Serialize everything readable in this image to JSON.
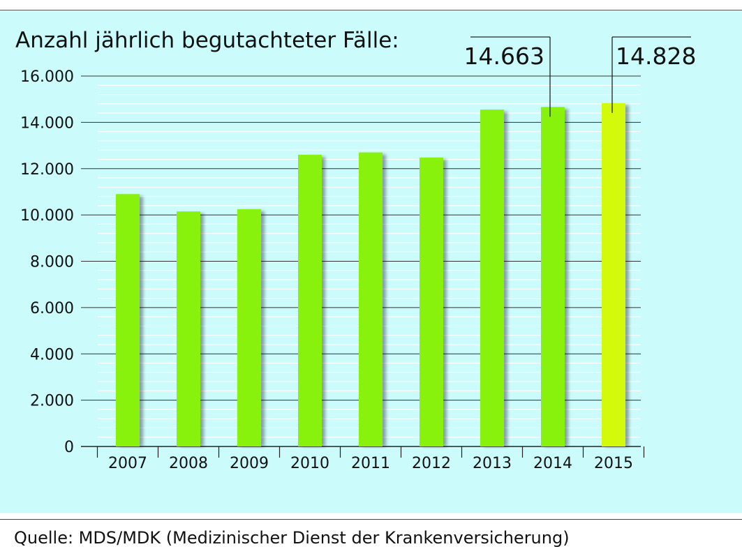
{
  "chart_data": {
    "type": "bar",
    "title": "Anzahl jährlich begutachteter Fälle:",
    "categories": [
      "2007",
      "2008",
      "2009",
      "2010",
      "2011",
      "2012",
      "2013",
      "2014",
      "2015"
    ],
    "values": [
      10900,
      10150,
      10250,
      12600,
      12700,
      12480,
      14550,
      14663,
      14828
    ],
    "y_ticks": [
      "0",
      "2.000",
      "4.000",
      "6.000",
      "8.000",
      "10.000",
      "12.000",
      "14.000",
      "16.000"
    ],
    "ylim": [
      0,
      16000
    ],
    "grid": true,
    "callouts": [
      {
        "category": "2014",
        "label": "14.663"
      },
      {
        "category": "2015",
        "label": "14.828"
      }
    ],
    "colors": {
      "bar": "#88f20c",
      "highlight_bar": "#d3fa0a",
      "background": "#cbfbfb"
    }
  },
  "source": "Quelle: MDS/MDK (Medizinischer Dienst der Krankenversicherung)"
}
